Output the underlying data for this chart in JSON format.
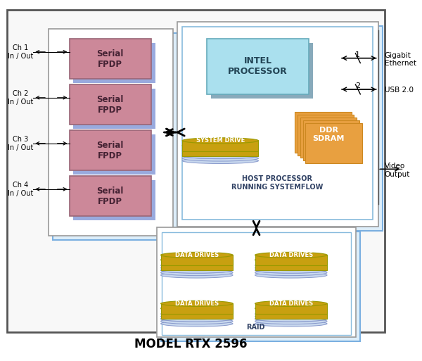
{
  "title": "MODEL RTX 2596",
  "bg_color": "#ffffff",
  "outer_bg": "#f8f8f8",
  "outer_ec": "#555555",
  "light_blue_fill": "#ddeefa",
  "blue_shadow": "#7aafe0",
  "host_inner_fill": "#ffffff",
  "host_inner_ec": "#88bbdd",
  "fpdp_fill": "#cc8899",
  "fpdp_ec": "#996677",
  "fpdp_shadow": "#99aade",
  "intel_fill": "#aae0ee",
  "intel_ec": "#66aabb",
  "intel_shadow": "#88aabb",
  "ddr_fill": "#e8a040",
  "ddr_ec": "#cc8820",
  "drive_top": "#c8a010",
  "drive_side": "#ffffff",
  "drive_bottom": "#aabbdd",
  "drive_ec": "#999900",
  "drive_text": "#333300",
  "ch_labels": [
    "Ch 1\nIn / Out",
    "Ch 2\nIn / Out",
    "Ch 3\nIn / Out",
    "Ch 4\nIn / Out"
  ],
  "fpdp_label": "Serial\nFPDP",
  "host_label": "HOST PROCESSOR\nRUNNING SYSTEMFLOW",
  "raid_label": "RAID",
  "intel_label": "INTEL\nPROCESSOR",
  "system_drive_label": "SYSTEM DRIVE",
  "ddr_label": "DDR\nSDRAM",
  "data_drives_label": "DATA DRIVES",
  "gigabit_label": "Gigabit\nEthernet",
  "usb_label": "USB 2.0",
  "video_label": "Video\nOutput",
  "label1": "1",
  "label2": "2"
}
